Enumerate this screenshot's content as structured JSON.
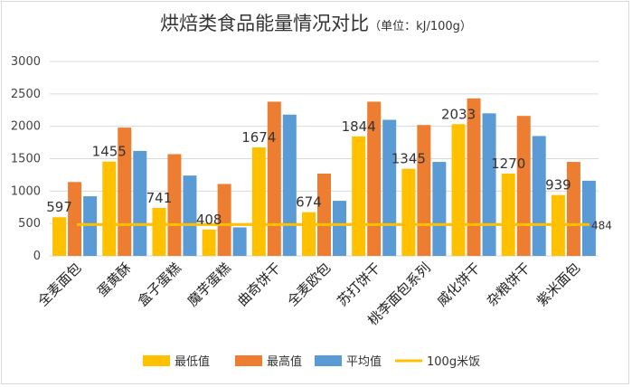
{
  "chart_data": {
    "type": "bar",
    "title": "烘焙类食品能量情况对比",
    "subtitle": "（单位：kJ/100g）",
    "categories": [
      "全麦面包",
      "蛋黄酥",
      "盒子蛋糕",
      "魔芋蛋糕",
      "曲奇饼干",
      "全麦欧包",
      "苏打饼干",
      "桃李面包系列",
      "威化饼干",
      "杂粮饼干",
      "紫米面包"
    ],
    "series": [
      {
        "name": "最低值",
        "color": "#FFC000",
        "values": [
          597,
          1455,
          741,
          408,
          1674,
          674,
          1844,
          1345,
          2033,
          1270,
          939
        ],
        "labels": [
          "597",
          "1455",
          "741",
          "408",
          "1674",
          "674",
          "1844",
          "1345",
          "2033",
          "1270",
          "939"
        ]
      },
      {
        "name": "最高值",
        "color": "#ED7D31",
        "values": [
          1140,
          1980,
          1570,
          1110,
          2380,
          1270,
          2380,
          2020,
          2430,
          2160,
          1450
        ]
      },
      {
        "name": "平均值",
        "color": "#5B9BD5",
        "values": [
          920,
          1620,
          1240,
          440,
          2180,
          850,
          2100,
          1450,
          2200,
          1850,
          1160
        ]
      }
    ],
    "reference_line": {
      "name": "100g米饭",
      "value": 484,
      "label": "484",
      "color": "#FFC000"
    },
    "yticks": [
      "0",
      "500",
      "1000",
      "1500",
      "2000",
      "2500",
      "3000"
    ],
    "ylim": [
      0,
      3000
    ],
    "grid": true,
    "legend_position": "bottom"
  }
}
